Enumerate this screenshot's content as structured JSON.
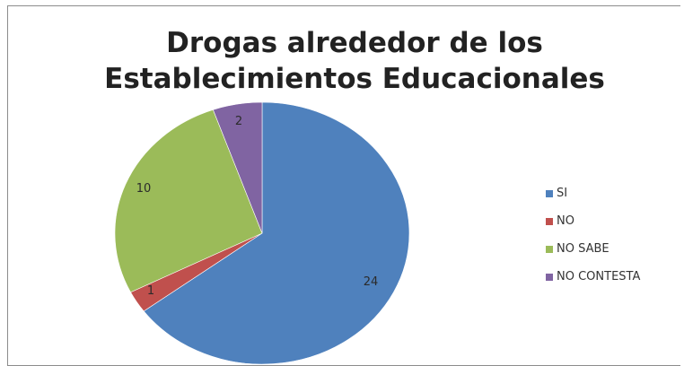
{
  "chart_data": {
    "type": "pie",
    "title_line1": "Drogas alrededor de los",
    "title_line2": "Establecimientos Educacionales",
    "categories": [
      "SI",
      "NO",
      "NO SABE",
      "NO CONTESTA"
    ],
    "values": [
      24,
      1,
      10,
      2
    ],
    "colors": [
      "#4f81bd",
      "#c0504d",
      "#9bbb59",
      "#8064a2"
    ],
    "legend_position": "right",
    "data_labels": true
  }
}
